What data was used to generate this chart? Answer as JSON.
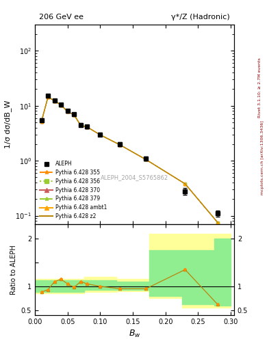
{
  "title_left": "206 GeV ee",
  "title_right": "γ*/Z (Hadronic)",
  "xlabel": "B_w",
  "ylabel_main": "1/σ dσ/dB_W",
  "ylabel_ratio": "Ratio to ALEPH",
  "right_label_top": "Rivet 3.1.10; ≥ 2.7M events",
  "right_label_bottom": "mcplots.cern.ch [arXiv:1306.3436]",
  "watermark": "ALEPH_2004_S5765862",
  "bw_centers": [
    0.01,
    0.02,
    0.03,
    0.04,
    0.05,
    0.06,
    0.07,
    0.08,
    0.1,
    0.13,
    0.17,
    0.23,
    0.28
  ],
  "aleph_y": [
    5.5,
    15.0,
    12.5,
    10.5,
    8.0,
    7.0,
    4.5,
    4.2,
    3.0,
    2.0,
    1.1,
    0.28,
    0.11
  ],
  "aleph_yerr": [
    0.4,
    0.8,
    0.7,
    0.6,
    0.5,
    0.4,
    0.3,
    0.3,
    0.2,
    0.15,
    0.1,
    0.04,
    0.015
  ],
  "pythia_y": [
    5.2,
    14.5,
    12.2,
    10.3,
    7.8,
    6.8,
    4.4,
    4.1,
    2.95,
    1.95,
    1.05,
    0.38,
    0.075
  ],
  "ratio_x": [
    0.01,
    0.02,
    0.03,
    0.04,
    0.05,
    0.06,
    0.07,
    0.08,
    0.1,
    0.13,
    0.17,
    0.23,
    0.28
  ],
  "ratio_y": [
    0.88,
    0.93,
    1.1,
    1.15,
    1.05,
    0.98,
    1.1,
    1.05,
    1.0,
    0.95,
    0.95,
    1.35,
    0.62
  ],
  "band_yellow_x": [
    0.0,
    0.05,
    0.075,
    0.125,
    0.175,
    0.225,
    0.275,
    0.3
  ],
  "band_yellow_lo": [
    0.85,
    0.85,
    0.88,
    0.9,
    0.75,
    0.55,
    0.55,
    0.55
  ],
  "band_yellow_hi": [
    1.15,
    1.15,
    1.2,
    1.15,
    2.1,
    2.1,
    2.1,
    2.1
  ],
  "band_green_x": [
    0.0,
    0.05,
    0.075,
    0.125,
    0.175,
    0.225,
    0.275,
    0.3
  ],
  "band_green_lo": [
    0.88,
    0.88,
    0.92,
    0.93,
    0.8,
    0.63,
    0.6,
    0.6
  ],
  "band_green_hi": [
    1.12,
    1.12,
    1.13,
    1.1,
    1.75,
    1.75,
    2.0,
    2.0
  ],
  "color_pythia": "#b8860b",
  "color_aleph": "#000000",
  "color_yellow": "#ffff99",
  "color_green": "#90ee90",
  "main_ylim": [
    0.07,
    300
  ],
  "ratio_ylim": [
    0.4,
    2.3
  ],
  "xlim": [
    0.0,
    0.305
  ]
}
